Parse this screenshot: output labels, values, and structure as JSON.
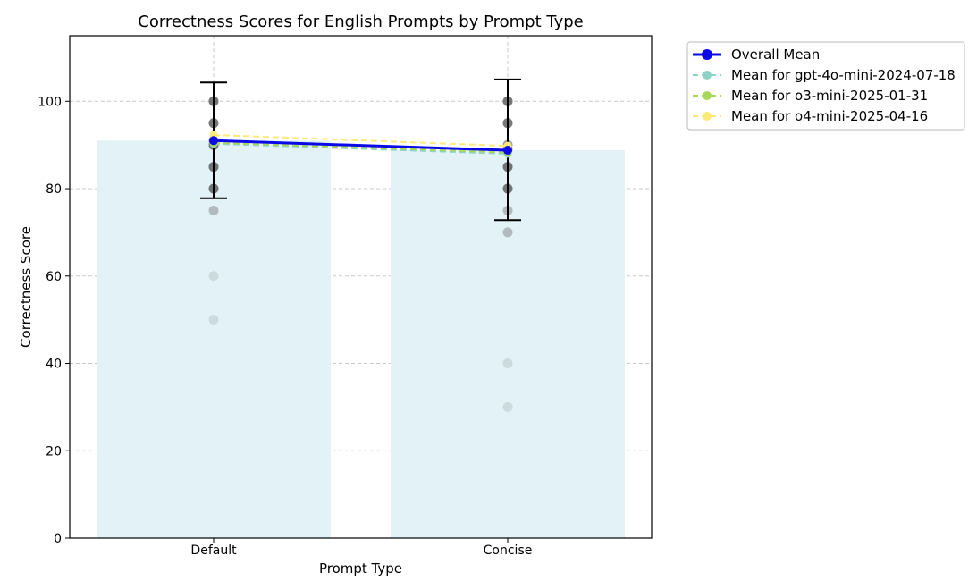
{
  "chart_data": {
    "type": "bar",
    "title": "Correctness Scores for English Prompts by Prompt Type",
    "xlabel": "Prompt Type",
    "ylabel": "Correctness Score",
    "categories": [
      "Default",
      "Concise"
    ],
    "ylim": [
      0,
      115
    ],
    "yticks": [
      0,
      20,
      40,
      60,
      80,
      100
    ],
    "grid": true,
    "legend_position": "outside-top-right",
    "bars": {
      "values": [
        91.0,
        88.8
      ],
      "color": "#e2f2f7"
    },
    "error_bars": {
      "center": [
        91.0,
        88.8
      ],
      "lower": [
        77.8,
        72.8
      ],
      "upper": [
        104.3,
        105.0
      ],
      "color": "#000000"
    },
    "individual_scores": [
      {
        "category": "Default",
        "values": [
          100,
          100,
          95,
          95,
          91,
          90,
          90,
          85,
          85,
          80,
          80,
          75,
          60,
          50
        ]
      },
      {
        "category": "Concise",
        "values": [
          100,
          100,
          95,
          95,
          90,
          89,
          85,
          85,
          80,
          80,
          75,
          70,
          40,
          30
        ]
      }
    ],
    "series": [
      {
        "name": "Overall Mean",
        "values": [
          91.0,
          88.8
        ],
        "color": "#0a0ae6",
        "style": "solid-marker"
      },
      {
        "name": "Mean for gpt-4o-mini-2024-07-18",
        "values": [
          90.3,
          88.0
        ],
        "color": "#8fd3c8",
        "style": "dashed"
      },
      {
        "name": "Mean for o3-mini-2025-01-31",
        "values": [
          90.5,
          88.3
        ],
        "color": "#a8d85a",
        "style": "dashed"
      },
      {
        "name": "Mean for o4-mini-2025-04-16",
        "values": [
          92.3,
          89.8
        ],
        "color": "#fde87a",
        "style": "dashed"
      }
    ]
  }
}
